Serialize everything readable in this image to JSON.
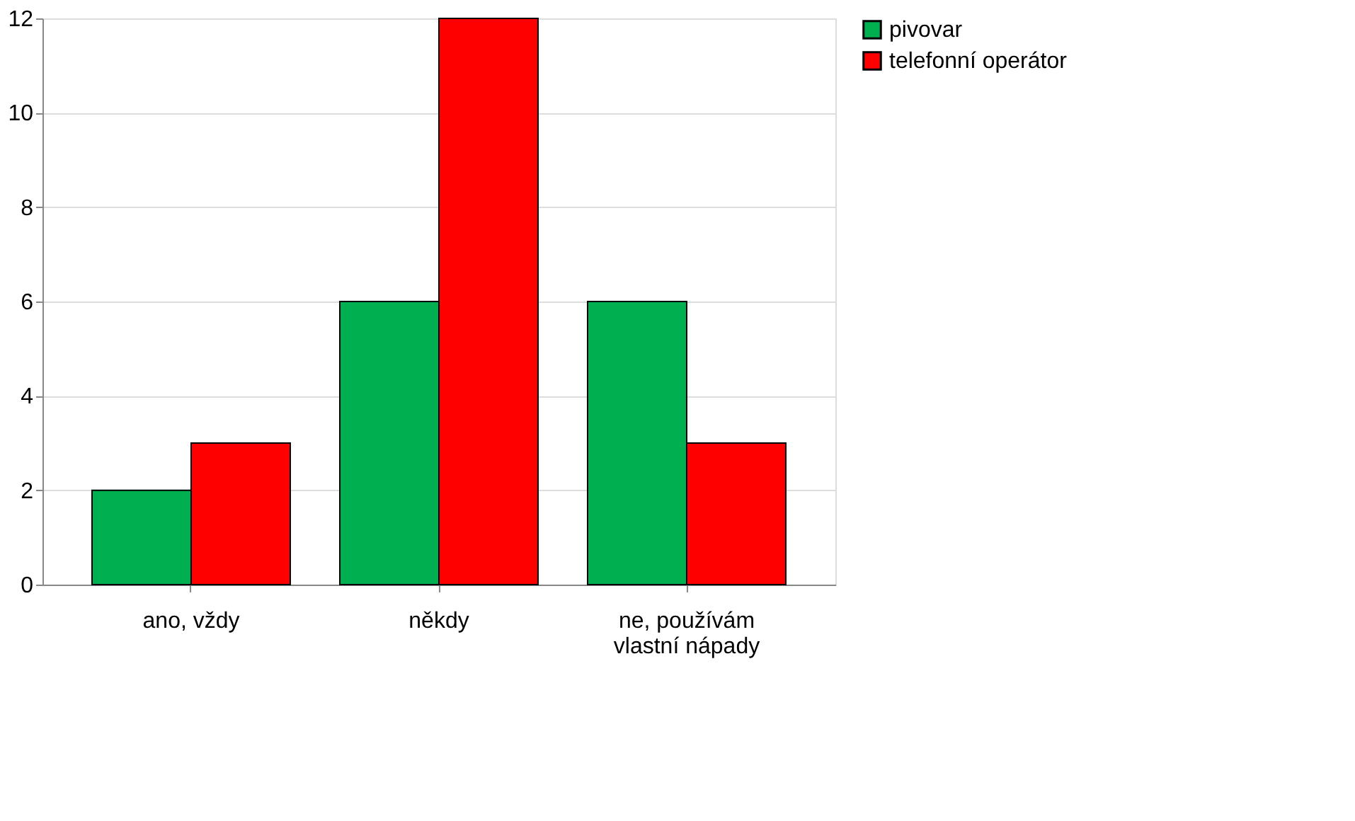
{
  "chart_data": {
    "type": "bar",
    "categories": [
      "ano, vždy",
      "někdy",
      "ne, používám\nvlastní nápady"
    ],
    "series": [
      {
        "name": "pivovar",
        "color": "#00b050",
        "values": [
          2,
          6,
          6
        ]
      },
      {
        "name": "telefonní operátor",
        "color": "#ff0000",
        "values": [
          3,
          12,
          3
        ]
      }
    ],
    "ylim": [
      0,
      12
    ],
    "yticks": [
      0,
      2,
      4,
      6,
      8,
      10,
      12
    ],
    "grid": "y",
    "legend": "right"
  }
}
